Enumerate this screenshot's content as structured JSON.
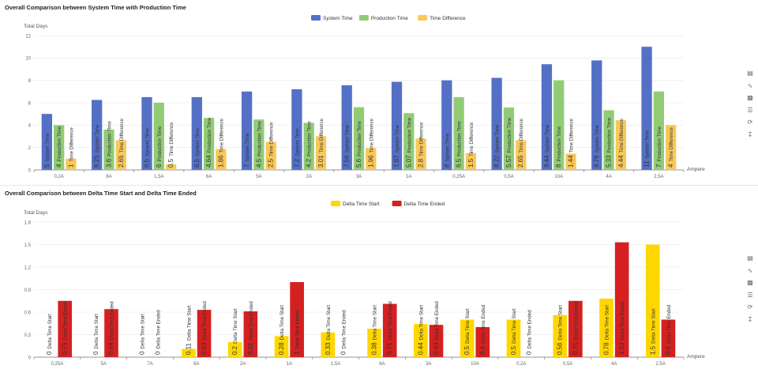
{
  "toolbar_icons": [
    "data-view-icon",
    "line-chart-icon",
    "bar-chart-icon",
    "stack-icon",
    "restore-icon",
    "save-image-icon"
  ],
  "charts": [
    {
      "title": "Overall Comparison between System Time with Production Time",
      "chart_data": {
        "type": "bar",
        "title": "Overall Comparison between System Time with Production Time",
        "xlabel": "Ampere",
        "ylabel": "Total Days",
        "ylim": [
          0,
          12
        ],
        "yticks": [
          "0",
          "2",
          "4",
          "6",
          "8",
          "10",
          "12"
        ],
        "yticks_values": [
          0,
          2,
          4,
          6,
          8,
          10,
          12
        ],
        "categories": [
          "0,2A",
          "8A",
          "1,5A",
          "6A",
          "5A",
          "2A",
          "3A",
          "1A",
          "0,25A",
          "0,5A",
          "10A",
          "4A",
          "2,5A"
        ],
        "legend_position": "top-center",
        "grid": true,
        "series": [
          {
            "name": "System Time",
            "color": "#5470c6",
            "values": [
              5,
              6.25,
              6.5,
              6.5,
              7,
              7.2,
              7.56,
              7.87,
              8,
              8.22,
              9.44,
              9.78,
              11
            ]
          },
          {
            "name": "Production Time",
            "color": "#91cc75",
            "values": [
              4,
              3.6,
              6,
              4.64,
              4.5,
              4.2,
              5.6,
              5.07,
              6.5,
              5.57,
              8,
              5.33,
              7
            ]
          },
          {
            "name": "Time Difference",
            "color": "#fac858",
            "values": [
              1,
              2.65,
              0.5,
              1.86,
              2.5,
              3.01,
              1.96,
              2.8,
              1.5,
              2.65,
              1.44,
              4.44,
              4
            ]
          }
        ]
      }
    },
    {
      "title": "Overall Comparison between Delta Time Start and Delta Time Ended",
      "chart_data": {
        "type": "bar",
        "title": "Overall Comparison between Delta Time Start and Delta Time Ended",
        "xlabel": "Ampere",
        "ylabel": "Total Days",
        "ylim": [
          0,
          1.8
        ],
        "yticks": [
          "0",
          "0.3",
          "0.6",
          "0.9",
          "1.2",
          "1.5",
          "1.8"
        ],
        "yticks_values": [
          0,
          0.3,
          0.6,
          0.9,
          1.2,
          1.5,
          1.8
        ],
        "categories": [
          "0,25A",
          "5A",
          "7A",
          "8A",
          "2A",
          "1A",
          "1,5A",
          "6A",
          "3A",
          "10A",
          "0,2A",
          "0,5A",
          "4A",
          "2,5A"
        ],
        "legend_position": "top-center",
        "grid": true,
        "series": [
          {
            "name": "Delta Time Start",
            "color": "#ffd700",
            "values": [
              0,
              0,
              0,
              0.11,
              0.2,
              0.28,
              0.33,
              0.38,
              0.44,
              0.5,
              0.5,
              0.56,
              0.78,
              1.5
            ]
          },
          {
            "name": "Delta Time Ended",
            "color": "#d42020",
            "values": [
              0.75,
              0.64,
              0,
              0.63,
              0.61,
              1,
              0,
              0.71,
              0.43,
              0.4,
              0,
              0.75,
              1.53,
              0.5
            ]
          }
        ]
      }
    }
  ]
}
